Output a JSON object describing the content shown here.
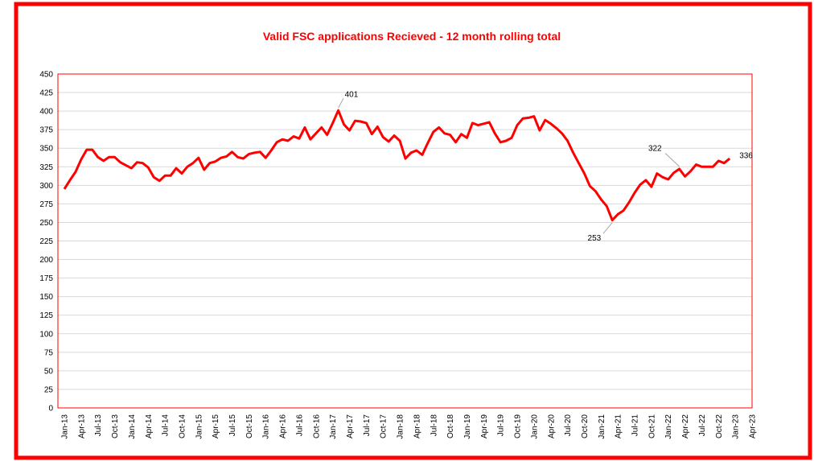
{
  "chart_data": {
    "type": "line",
    "title": "Valid FSC applications Recieved   - 12 month rolling total",
    "categories": [
      "Jan-13",
      null,
      null,
      "Apr-13",
      null,
      null,
      "Jul-13",
      null,
      null,
      "Oct-13",
      null,
      null,
      "Jan-14",
      null,
      null,
      "Apr-14",
      null,
      null,
      "Jul-14",
      null,
      null,
      "Oct-14",
      null,
      null,
      "Jan-15",
      null,
      null,
      "Apr-15",
      null,
      null,
      "Jul-15",
      null,
      null,
      "Oct-15",
      null,
      null,
      "Jan-16",
      null,
      null,
      "Apr-16",
      null,
      null,
      "Jul-16",
      null,
      null,
      "Oct-16",
      null,
      null,
      "Jan-17",
      null,
      null,
      "Apr-17",
      null,
      null,
      "Jul-17",
      null,
      null,
      "Oct-17",
      null,
      null,
      "Jan-18",
      null,
      null,
      "Apr-18",
      null,
      null,
      "Jul-18",
      null,
      null,
      "Oct-18",
      null,
      null,
      "Jan-19",
      null,
      null,
      "Apr-19",
      null,
      null,
      "Jul-19",
      null,
      null,
      "Oct-19",
      null,
      null,
      "Jan-20",
      null,
      null,
      "Apr-20",
      null,
      null,
      "Jul-20",
      null,
      null,
      "Oct-20",
      null,
      null,
      "Jan-21",
      null,
      null,
      "Apr-21",
      null,
      null,
      "Jul-21",
      null,
      null,
      "Oct-21",
      null,
      null,
      "Jan-22",
      null,
      null,
      "Apr-22",
      null,
      null,
      "Jul-22",
      null,
      null,
      "Oct-22",
      null,
      null,
      "Jan-23",
      null,
      null,
      "Apr-23"
    ],
    "series": [
      {
        "color": "#ff0000",
        "values": [
          295,
          307,
          318,
          335,
          348,
          348,
          338,
          333,
          338,
          338,
          331,
          327,
          323,
          331,
          330,
          324,
          311,
          306,
          313,
          313,
          323,
          316,
          325,
          330,
          337,
          321,
          330,
          332,
          337,
          339,
          345,
          338,
          336,
          342,
          344,
          345,
          337,
          347,
          358,
          362,
          360,
          366,
          363,
          378,
          362,
          370,
          378,
          368,
          384,
          401,
          382,
          374,
          387,
          386,
          384,
          369,
          379,
          365,
          359,
          367,
          360,
          336,
          344,
          347,
          341,
          357,
          372,
          378,
          370,
          368,
          358,
          369,
          364,
          384,
          381,
          383,
          385,
          370,
          358,
          360,
          364,
          381,
          390,
          391,
          393,
          374,
          388,
          383,
          377,
          370,
          360,
          344,
          330,
          316,
          299,
          292,
          281,
          272,
          253,
          261,
          266,
          277,
          290,
          301,
          307,
          298,
          316,
          311,
          308,
          317,
          322,
          312,
          319,
          328,
          325,
          325,
          325,
          333,
          330,
          336,
          null,
          null,
          null,
          null
        ],
        "value_labels": [
          null,
          null,
          null,
          null,
          null,
          null,
          null,
          null,
          null,
          null,
          null,
          null,
          null,
          null,
          null,
          null,
          null,
          null,
          null,
          null,
          null,
          null,
          null,
          null,
          null,
          null,
          null,
          null,
          null,
          null,
          null,
          null,
          null,
          null,
          null,
          null,
          null,
          null,
          null,
          null,
          null,
          null,
          null,
          null,
          null,
          null,
          null,
          null,
          null,
          "401",
          null,
          null,
          null,
          null,
          null,
          null,
          null,
          null,
          null,
          null,
          null,
          null,
          null,
          null,
          null,
          null,
          null,
          null,
          null,
          null,
          null,
          null,
          null,
          null,
          null,
          null,
          null,
          null,
          null,
          null,
          null,
          null,
          null,
          null,
          null,
          null,
          null,
          null,
          null,
          null,
          null,
          null,
          null,
          null,
          null,
          null,
          null,
          null,
          "253",
          null,
          null,
          null,
          null,
          null,
          null,
          null,
          null,
          null,
          null,
          null,
          "322",
          null,
          null,
          null,
          null,
          null,
          null,
          null,
          null,
          "336",
          null,
          null,
          null,
          null
        ]
      }
    ],
    "ylim": [
      0,
      450
    ],
    "yticks": [
      0,
      25,
      50,
      75,
      100,
      125,
      150,
      175,
      200,
      225,
      250,
      275,
      300,
      325,
      350,
      375,
      400,
      425,
      450
    ],
    "grid": true
  }
}
